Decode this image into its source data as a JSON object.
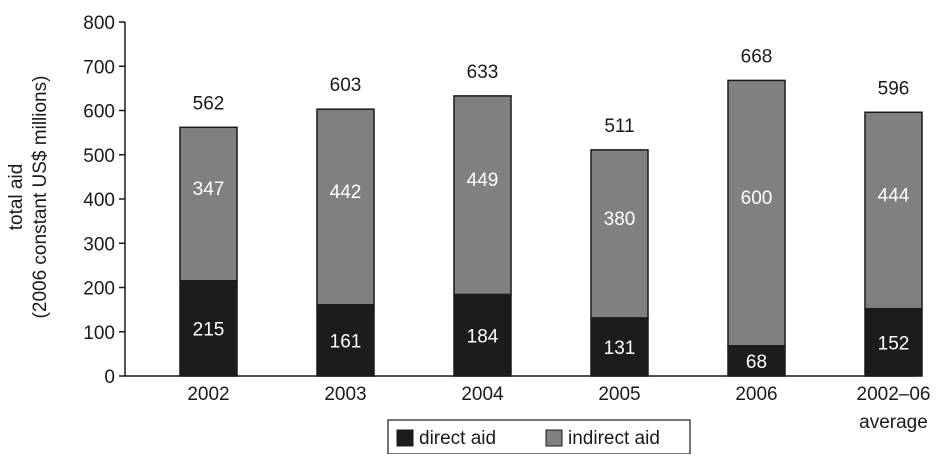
{
  "chart_data": {
    "type": "bar",
    "stacked": true,
    "categories": [
      "2002",
      "2003",
      "2004",
      "2005",
      "2006",
      "2002–06 average"
    ],
    "category_lines": [
      [
        "2002"
      ],
      [
        "2003"
      ],
      [
        "2004"
      ],
      [
        "2005"
      ],
      [
        "2006"
      ],
      [
        "2002–06",
        "average"
      ]
    ],
    "series": [
      {
        "name": "direct aid",
        "values": [
          215,
          161,
          184,
          131,
          68,
          152
        ],
        "color": "#1c1c1c"
      },
      {
        "name": "indirect aid",
        "values": [
          347,
          442,
          449,
          380,
          600,
          444
        ],
        "color": "#808080"
      }
    ],
    "totals": [
      562,
      603,
      633,
      511,
      668,
      596
    ],
    "title": "",
    "xlabel": "",
    "ylabel_lines": [
      "total aid",
      "(2006 constant US$ millions)"
    ],
    "ylim": [
      0,
      800
    ],
    "yticks": [
      0,
      100,
      200,
      300,
      400,
      500,
      600,
      700,
      800
    ],
    "grid": false,
    "legend_position": "bottom"
  }
}
